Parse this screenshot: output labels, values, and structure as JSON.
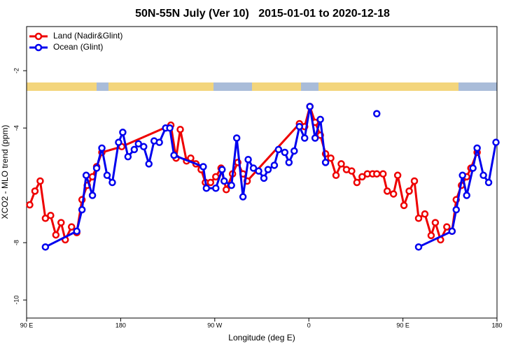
{
  "chart_data": {
    "type": "line",
    "title": "50N-55N July (Ver 10)   2015-01-01 to 2020-12-18",
    "x_label": "Longitude (deg E)",
    "y_label": "XCO2 - MLO trend (ppm)",
    "xlim": [
      90,
      540
    ],
    "ylim": [
      -10.63,
      -0.46
    ],
    "xticks": [
      {
        "value": 90,
        "label": "90 E"
      },
      180,
      {
        "value": 270,
        "label": "90 W"
      },
      {
        "value": 360,
        "label": "0"
      },
      {
        "value": 450,
        "label": "90 E"
      },
      {
        "value": 540,
        "label": "180"
      }
    ],
    "yticks": [
      -2,
      -4,
      -8,
      -10
    ],
    "legend": "top-left",
    "series": [
      {
        "name": "Land (Nadir&Glint)",
        "color": "#ee0000",
        "x": [
          93,
          98,
          103,
          108,
          113,
          118,
          123,
          127,
          133,
          138,
          143,
          148,
          153,
          157,
          162,
          181,
          228,
          233,
          237,
          243,
          247,
          252,
          257,
          261,
          266,
          271,
          276,
          281,
          287,
          292,
          297,
          301,
          351,
          356,
          361,
          366,
          371,
          376,
          381,
          386,
          391,
          396,
          401,
          406,
          411,
          416,
          421,
          425,
          431,
          435,
          441,
          445,
          451,
          456,
          461,
          465,
          471,
          477,
          481,
          486,
          492,
          497,
          501,
          506,
          511,
          515,
          521
        ],
        "values": [
          -6.68,
          -6.2,
          -5.85,
          -7.15,
          -7.05,
          -7.73,
          -7.3,
          -7.9,
          -7.45,
          -7.65,
          -6.5,
          -6.0,
          -5.7,
          -5.35,
          -4.85,
          -4.65,
          -3.9,
          -5.05,
          -4.05,
          -5.15,
          -5.05,
          -5.25,
          -5.45,
          -5.9,
          -5.9,
          -5.7,
          -5.4,
          -6.15,
          -5.6,
          -5.2,
          -5.6,
          -5.85,
          -3.85,
          -3.95,
          -3.25,
          -3.8,
          -4.25,
          -4.9,
          -5.05,
          -5.65,
          -5.25,
          -5.45,
          -5.5,
          -5.9,
          -5.7,
          -5.6,
          -5.6,
          -5.6,
          -5.6,
          -6.2,
          -6.3,
          -5.65,
          -6.7,
          -6.2,
          -5.85,
          -7.15,
          -7.0,
          -7.75,
          -7.3,
          -7.9,
          -7.45,
          -7.6,
          -6.5,
          -6.0,
          -5.7,
          -5.4,
          -4.85
        ]
      },
      {
        "name": "Ocean (Glint)",
        "color": "#0000ee",
        "x": [
          108,
          138,
          143,
          147,
          153,
          157,
          162,
          167,
          172,
          178,
          182,
          187,
          193,
          197,
          202,
          207,
          212,
          217,
          223,
          227,
          231,
          259,
          262,
          271,
          277,
          279,
          286,
          291,
          297,
          302,
          307,
          312,
          317,
          321,
          327,
          331,
          337,
          341,
          346,
          351,
          356,
          361,
          366,
          371,
          376,
          null,
          425,
          null,
          465,
          497,
          501,
          507,
          511,
          517,
          521,
          527,
          532,
          539
        ],
        "values": [
          -8.15,
          -7.6,
          -6.85,
          -5.65,
          -6.35,
          -5.4,
          -4.7,
          -5.65,
          -5.9,
          -4.5,
          -4.15,
          -5.0,
          -4.75,
          -4.55,
          -4.65,
          -5.25,
          -4.45,
          -4.5,
          -4.0,
          -4.0,
          -4.95,
          -5.35,
          -6.1,
          -6.1,
          -5.45,
          -5.85,
          -6.0,
          -4.35,
          -6.4,
          -5.1,
          -5.4,
          -5.5,
          -5.75,
          -5.45,
          -5.3,
          -4.75,
          -4.85,
          -5.2,
          -4.8,
          -3.95,
          -4.35,
          -3.25,
          -4.35,
          -3.7,
          -5.2,
          null,
          -3.5,
          null,
          -8.15,
          -7.6,
          -6.85,
          -5.65,
          -6.35,
          -5.4,
          -4.7,
          -5.65,
          -5.9,
          -4.5
        ]
      }
    ]
  }
}
